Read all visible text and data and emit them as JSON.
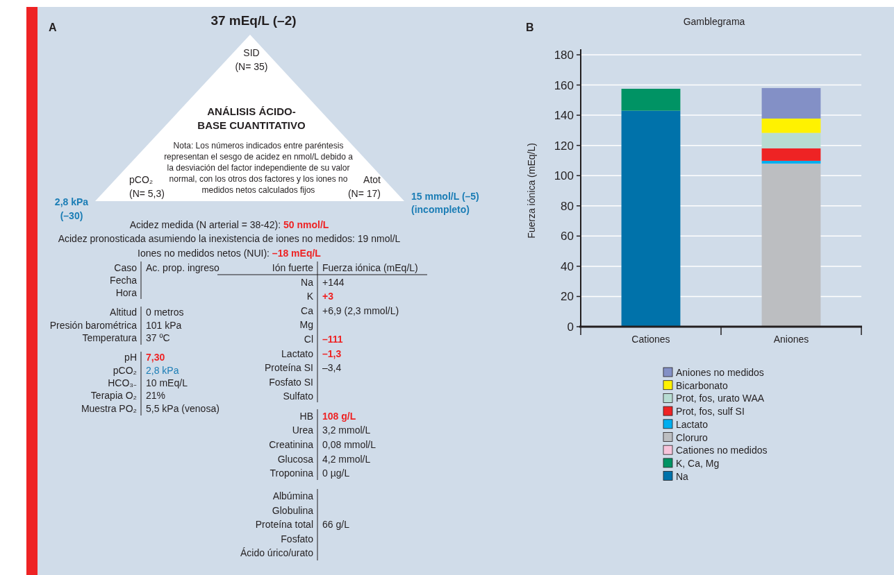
{
  "chart_data": [
    {
      "type": "other",
      "annotations": [
        "A",
        "37 mEq/L (–2)",
        "SID",
        "(N= 35)",
        "ANÁLISIS ÁCIDO-",
        "BASE CUANTITATIVO",
        "Nota: Los números indicados entre paréntesis",
        "representan el sesgo de acidez en nmol/L debido a",
        "la desviación del factor independiente de su valor",
        "normal, con los otros dos factores y los iones no",
        "medidos netos calculados fijos",
        "pCO₂",
        "(N= 5,3)",
        "Atot",
        "(N= 17)",
        "2,8 kPa",
        "(–30)",
        "15 mmol/L (–5)",
        "(incompleto)",
        "Acidez medida (N arterial = 38-42): ",
        "50 nmol/L",
        "Acidez pronosticada asumiendo la inexistencia de iones no medidos: 19 nmol/L",
        "Iones no medidos netos (NUI): ",
        "–18 mEq/L",
        "Caso",
        "Ac. prop. ingreso",
        "Fecha",
        "Hora",
        "Altitud",
        "0 metros",
        "Presión barométrica",
        "101 kPa",
        "Temperatura",
        "37 ºC",
        "pH",
        "7,30",
        "pCO₂",
        "2,8 kPa",
        "HCO₃₋",
        "10 mEq/L",
        "Terapia O₂",
        "21%",
        "Muestra PO₂",
        "5,5 kPa (venosa)",
        "Ión fuerte",
        "Fuerza iónica (mEq/L)",
        "Na",
        "+144",
        "K",
        "+3",
        "Ca",
        "+6,9 (2,3 mmol/L)",
        "Mg",
        "Cl",
        "–111",
        "Lactato",
        "–1,3",
        "Proteína SI",
        "–3,4",
        "Fosfato SI",
        "Sulfato",
        "HB",
        "108 g/L",
        "Urea",
        "3,2 mmol/L",
        "Creatinina",
        "0,08 mmol/L",
        "Glucosa",
        "4,2 mmol/L",
        "Troponina",
        "0 µg/L",
        "Albúmina",
        "Globulina",
        "Proteína total",
        "66 g/L",
        "Fosfato",
        "Ácido úrico/urato"
      ]
    },
    {
      "type": "bar",
      "title": "Gamblegrama",
      "annotations": [
        "B"
      ],
      "ylabel": "Fuerza iónica (mEq/L)",
      "categories": [
        "Cationes",
        "Aniones"
      ],
      "stacked": true,
      "ylim": [
        0,
        180
      ],
      "yticks": [
        0,
        20,
        40,
        60,
        80,
        100,
        120,
        140,
        160,
        180
      ],
      "grid": "y",
      "legend": "bottom",
      "series": [
        {
          "name": "Na",
          "color": "#0072aa",
          "values": [
            143,
            null
          ]
        },
        {
          "name": "K, Ca, Mg",
          "color": "#009364",
          "values": [
            14.5,
            null
          ]
        },
        {
          "name": "Cationes no medidos",
          "color": "#f7c4db",
          "values": [
            null,
            null
          ]
        },
        {
          "name": "Cloruro",
          "color": "#bcbec1",
          "values": [
            null,
            108
          ]
        },
        {
          "name": "Lactato",
          "color": "#00aeef",
          "values": [
            null,
            1.8
          ]
        },
        {
          "name": "Prot, fos, sulf SI",
          "color": "#ee2324",
          "values": [
            null,
            8.3
          ]
        },
        {
          "name": "Prot, fos, urato WAA",
          "color": "#b7dcd2",
          "values": [
            null,
            10.2
          ]
        },
        {
          "name": "Bicarbonato",
          "color": "#fff200",
          "values": [
            null,
            9.5
          ]
        },
        {
          "name": "Aniones no medidos",
          "color": "#8390c6",
          "values": [
            null,
            20.2
          ]
        }
      ]
    }
  ]
}
